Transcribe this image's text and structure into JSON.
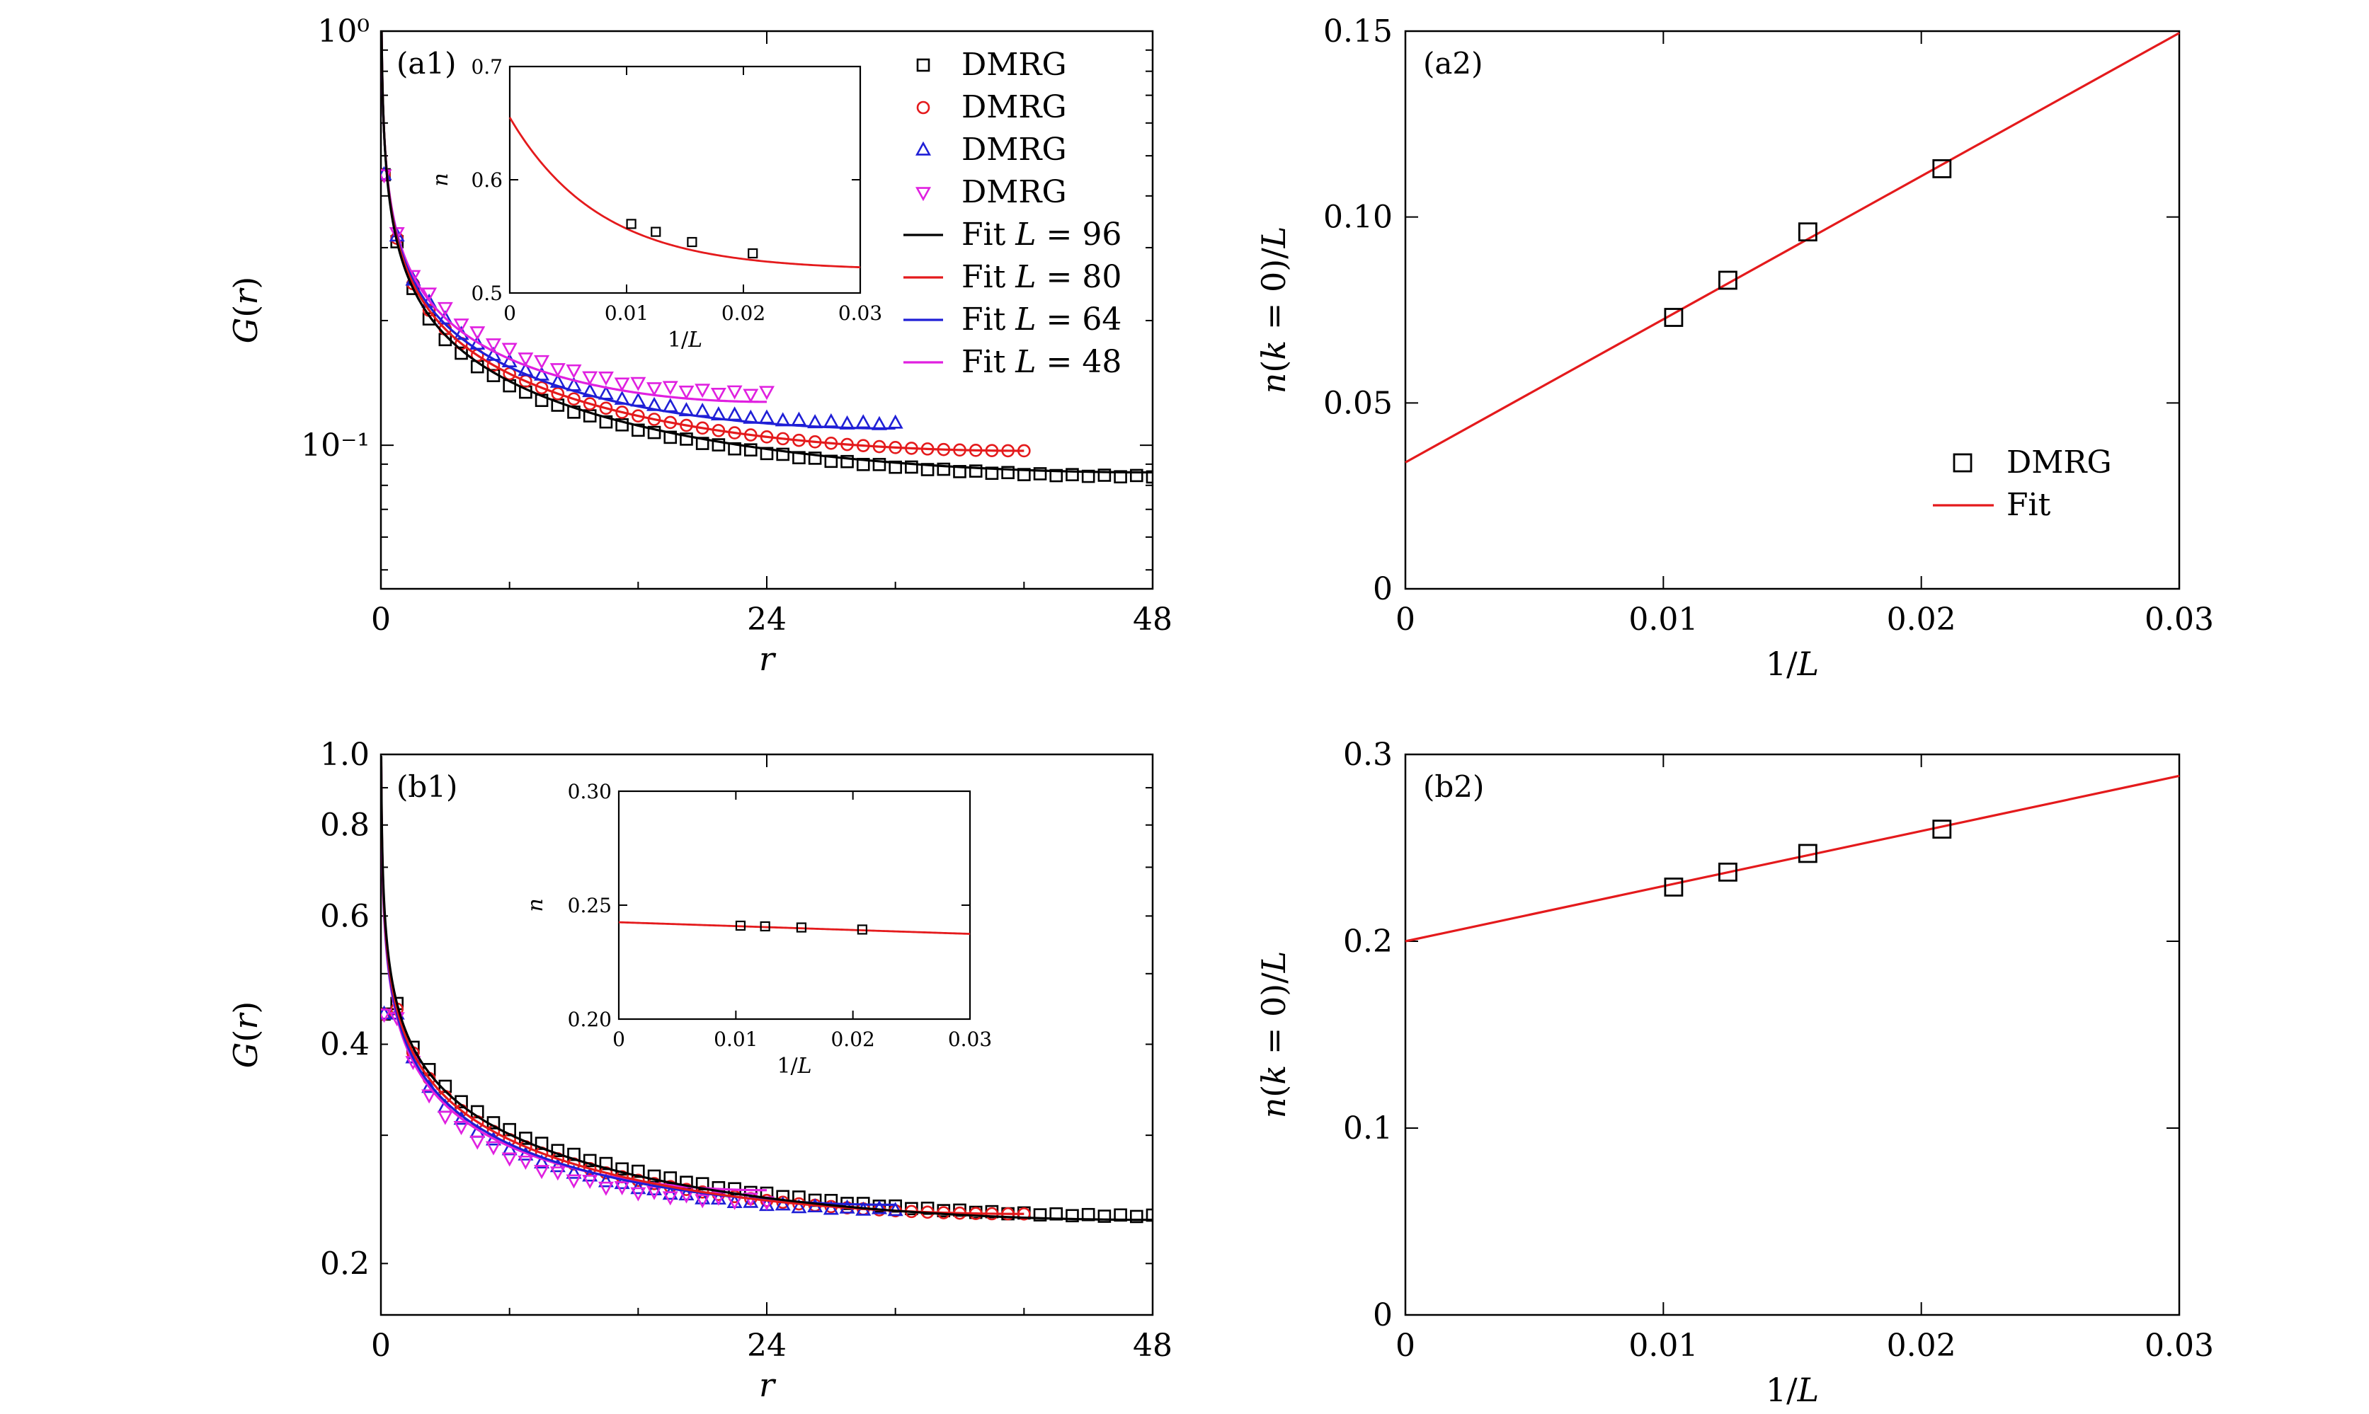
{
  "chart_data": [
    {
      "id": "a1",
      "type": "line",
      "panel_label": "(a1)",
      "xlabel": "r",
      "ylabel": "G(r)",
      "yscale": "log",
      "xlim": [
        0,
        48
      ],
      "ylim": [
        0.045,
        1.0
      ],
      "xticks": [
        0,
        24,
        48
      ],
      "xtick_labels": [
        "0",
        "24",
        "48"
      ],
      "yticks": [
        0.1,
        1.0
      ],
      "ytick_labels": [
        "10⁻¹",
        "10⁰"
      ],
      "legend": {
        "position": "top-right",
        "entries": [
          {
            "label": "DMRG",
            "marker": "square",
            "color": "#000000"
          },
          {
            "label": "DMRG",
            "marker": "circle",
            "color": "#e41a1c"
          },
          {
            "label": "DMRG",
            "marker": "triangle-up",
            "color": "#1f1fd6"
          },
          {
            "label": "DMRG",
            "marker": "triangle-down",
            "color": "#e020e0"
          },
          {
            "label": "Fit L = 96",
            "line": true,
            "color": "#000000"
          },
          {
            "label": "Fit L = 80",
            "line": true,
            "color": "#e41a1c"
          },
          {
            "label": "Fit L = 64",
            "line": true,
            "color": "#1f1fd6"
          },
          {
            "label": "Fit L = 48",
            "line": true,
            "color": "#e020e0"
          }
        ]
      },
      "series": [
        {
          "L": 96,
          "color": "#000000",
          "marker": "square",
          "points_r_max": 48,
          "fit": {
            "A": 0.31,
            "K": 0.375,
            "r_max": 48
          }
        },
        {
          "L": 80,
          "color": "#e41a1c",
          "marker": "circle",
          "points_r_max": 40,
          "fit": {
            "A": 0.316,
            "K": 0.365,
            "r_max": 40
          }
        },
        {
          "L": 64,
          "color": "#1f1fd6",
          "marker": "triangle-up",
          "points_r_max": 32,
          "fit": {
            "A": 0.32,
            "K": 0.355,
            "r_max": 32
          }
        },
        {
          "L": 48,
          "color": "#e020e0",
          "marker": "triangle-down",
          "points_r_max": 24,
          "fit": {
            "A": 0.326,
            "K": 0.345,
            "r_max": 24
          }
        }
      ],
      "inset": {
        "xlabel": "1/L",
        "ylabel": "n",
        "xlim": [
          0,
          0.03
        ],
        "ylim": [
          0.5,
          0.7
        ],
        "xticks": [
          0,
          0.01,
          0.02,
          0.03
        ],
        "xtick_labels": [
          "0",
          "0.01",
          "0.02",
          "0.03"
        ],
        "yticks": [
          0.5,
          0.6,
          0.7
        ],
        "ytick_labels": [
          "0.5",
          "0.6",
          "0.7"
        ],
        "points": {
          "x": [
            0.0104,
            0.0125,
            0.0156,
            0.0208
          ],
          "y": [
            0.561,
            0.554,
            0.545,
            0.535
          ]
        },
        "fit": {
          "form": "a + b*exp(-c*x)",
          "a": 0.52,
          "b": 0.135,
          "c": 130
        }
      }
    },
    {
      "id": "a2",
      "type": "scatter",
      "panel_label": "(a2)",
      "xlabel": "1/L",
      "ylabel": "n(k = 0)/L",
      "xlim": [
        0,
        0.03
      ],
      "ylim": [
        0,
        0.15
      ],
      "xticks": [
        0,
        0.01,
        0.02,
        0.03
      ],
      "xtick_labels": [
        "0",
        "0.01",
        "0.02",
        "0.03"
      ],
      "yticks": [
        0,
        0.05,
        0.1,
        0.15
      ],
      "ytick_labels": [
        "0",
        "0.05",
        "0.10",
        "0.15"
      ],
      "legend": {
        "position": "bottom-right",
        "entries": [
          {
            "label": "DMRG",
            "marker": "square",
            "color": "#000000"
          },
          {
            "label": "Fit",
            "line": true,
            "color": "#e41a1c"
          }
        ]
      },
      "points": {
        "x": [
          0.0104,
          0.0125,
          0.0156,
          0.0208
        ],
        "y": [
          0.073,
          0.083,
          0.096,
          0.113
        ]
      },
      "fit": {
        "intercept": 0.034,
        "slope": 3.85
      }
    },
    {
      "id": "b1",
      "type": "line",
      "panel_label": "(b1)",
      "xlabel": "r",
      "ylabel": "G(r)",
      "yscale": "log",
      "xlim": [
        0,
        48
      ],
      "ylim": [
        0.17,
        1.0
      ],
      "xticks": [
        0,
        24,
        48
      ],
      "xtick_labels": [
        "0",
        "24",
        "48"
      ],
      "yticks": [
        0.2,
        0.4,
        0.6,
        0.8,
        1.0
      ],
      "ytick_labels": [
        "0.2",
        "0.4",
        "0.6",
        "0.8",
        "1.0"
      ],
      "series": [
        {
          "L": 96,
          "color": "#000000",
          "marker": "square",
          "points_r_max": 48,
          "fit": {
            "A": 0.455,
            "K": 0.2,
            "r_max": 48
          }
        },
        {
          "L": 80,
          "color": "#e41a1c",
          "marker": "circle",
          "points_r_max": 40,
          "fit": {
            "A": 0.447,
            "K": 0.2,
            "r_max": 40
          }
        },
        {
          "L": 64,
          "color": "#1f1fd6",
          "marker": "triangle-up",
          "points_r_max": 32,
          "fit": {
            "A": 0.44,
            "K": 0.2,
            "r_max": 32
          }
        },
        {
          "L": 48,
          "color": "#e020e0",
          "marker": "triangle-down",
          "points_r_max": 24,
          "fit": {
            "A": 0.435,
            "K": 0.2,
            "r_max": 24
          }
        }
      ],
      "inset": {
        "xlabel": "1/L",
        "ylabel": "n",
        "xlim": [
          0,
          0.03
        ],
        "ylim": [
          0.2,
          0.3
        ],
        "xticks": [
          0,
          0.01,
          0.02,
          0.03
        ],
        "xtick_labels": [
          "0",
          "0.01",
          "0.02",
          "0.03"
        ],
        "yticks": [
          0.2,
          0.25,
          0.3
        ],
        "ytick_labels": [
          "0.20",
          "0.25",
          "0.30"
        ],
        "points": {
          "x": [
            0.0104,
            0.0125,
            0.0156,
            0.0208
          ],
          "y": [
            0.241,
            0.2407,
            0.2402,
            0.2393
          ]
        },
        "fit": {
          "form": "a + b*x",
          "a": 0.2425,
          "b": -0.17
        }
      }
    },
    {
      "id": "b2",
      "type": "scatter",
      "panel_label": "(b2)",
      "xlabel": "1/L",
      "ylabel": "n(k = 0)/L",
      "xlim": [
        0,
        0.03
      ],
      "ylim": [
        0,
        0.3
      ],
      "xticks": [
        0,
        0.01,
        0.02,
        0.03
      ],
      "xtick_labels": [
        "0",
        "0.01",
        "0.02",
        "0.03"
      ],
      "yticks": [
        0,
        0.1,
        0.2,
        0.3
      ],
      "ytick_labels": [
        "0",
        "0.1",
        "0.2",
        "0.3"
      ],
      "points": {
        "x": [
          0.0104,
          0.0125,
          0.0156,
          0.0208
        ],
        "y": [
          0.229,
          0.237,
          0.247,
          0.26
        ]
      },
      "fit": {
        "intercept": 0.2,
        "slope": 2.95
      }
    }
  ]
}
